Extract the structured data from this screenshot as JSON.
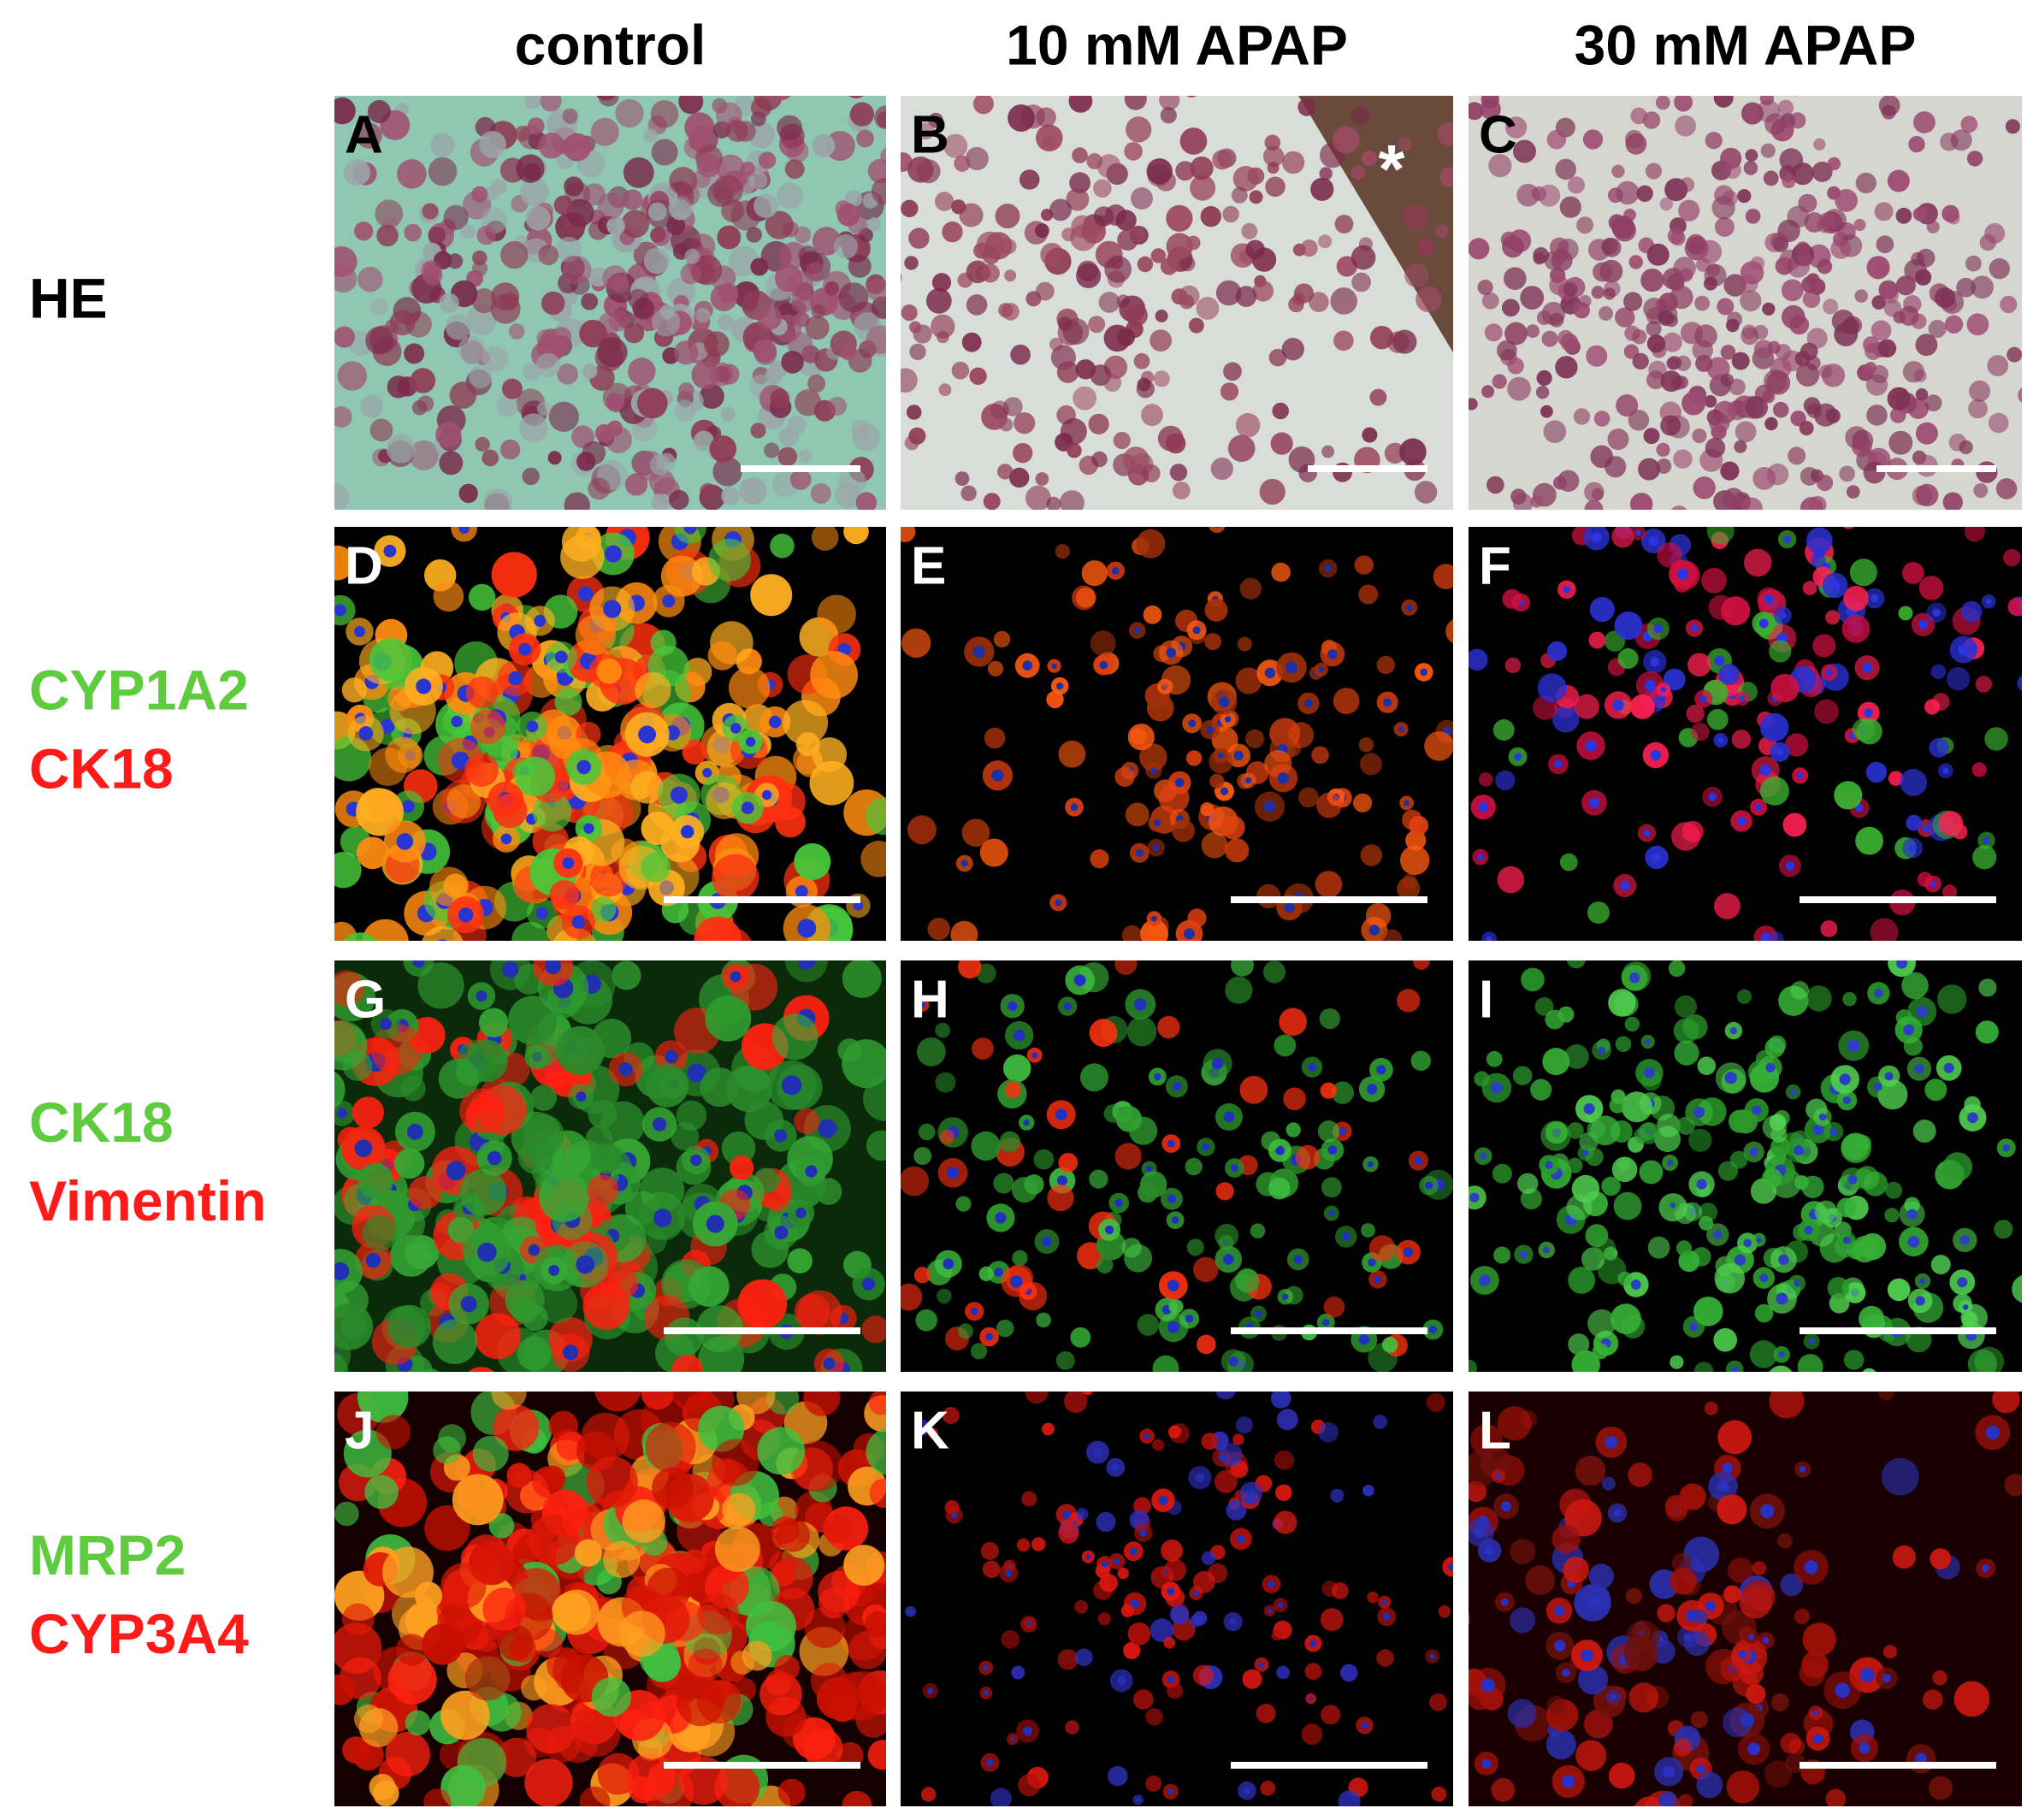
{
  "column_headers": [
    "control",
    "10 mM APAP",
    "30 mM APAP"
  ],
  "row_labels": [
    [
      "HE"
    ],
    [
      "CYP1A2",
      "CK18"
    ],
    [
      "CK18",
      "Vimentin"
    ],
    [
      "MRP2",
      "CYP3A4"
    ]
  ],
  "panel_letters": [
    "A",
    "B",
    "C",
    "D",
    "E",
    "F",
    "G",
    "H",
    "I",
    "J",
    "K",
    "L"
  ],
  "annotation": "*"
}
